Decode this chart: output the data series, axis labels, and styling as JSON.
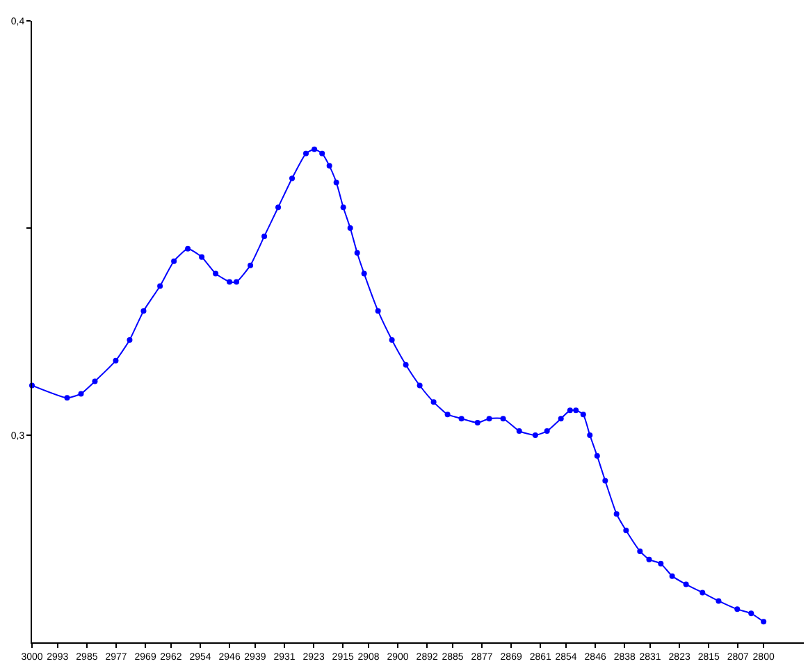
{
  "chart_data": {
    "type": "line",
    "x": [
      3000,
      2990.4,
      2986.6,
      2982.8,
      2977.1,
      2973.3,
      2969.5,
      2965.0,
      2961.2,
      2957.4,
      2953.6,
      2949.8,
      2946.0,
      2944.1,
      2940.3,
      2936.5,
      2932.7,
      2928.9,
      2925.1,
      2922.8,
      2920.7,
      2918.7,
      2916.8,
      2914.9,
      2913.0,
      2911.1,
      2909.2,
      2905.4,
      2901.6,
      2897.8,
      2894.0,
      2890.2,
      2886.4,
      2882.6,
      2878.2,
      2875.0,
      2871.2,
      2866.8,
      2862.4,
      2859.2,
      2855.4,
      2852.9,
      2851.3,
      2849.3,
      2847.5,
      2845.5,
      2843.3,
      2840.2,
      2837.6,
      2833.8,
      2831.3,
      2828.1,
      2825.0,
      2821.2,
      2816.7,
      2812.3,
      2807.2,
      2803.4,
      2800
    ],
    "series": [
      {
        "color": "#0000ff",
        "values": [
          0.312,
          0.309,
          0.31,
          0.313,
          0.318,
          0.323,
          0.33,
          0.336,
          0.342,
          0.345,
          0.343,
          0.339,
          0.337,
          0.337,
          0.341,
          0.348,
          0.355,
          0.362,
          0.368,
          0.369,
          0.368,
          0.365,
          0.361,
          0.355,
          0.35,
          0.344,
          0.339,
          0.33,
          0.323,
          0.317,
          0.312,
          0.308,
          0.305,
          0.304,
          0.303,
          0.304,
          0.304,
          0.301,
          0.3,
          0.301,
          0.304,
          0.306,
          0.306,
          0.305,
          0.3,
          0.295,
          0.289,
          0.281,
          0.277,
          0.272,
          0.27,
          0.269,
          0.266,
          0.264,
          0.262,
          0.26,
          0.258,
          0.257,
          0.255
        ]
      }
    ],
    "xlim": [
      3000,
      2789
    ],
    "xticks": [
      3000,
      2993,
      2985,
      2977,
      2969,
      2962,
      2954,
      2946,
      2939,
      2931,
      2923,
      2915,
      2908,
      2900,
      2892,
      2885,
      2877,
      2869,
      2861,
      2854,
      2846,
      2838,
      2831,
      2823,
      2815,
      2807,
      2800
    ],
    "ylim": [
      0.25,
      0.4
    ],
    "yticks": [
      {
        "value": 0.3,
        "label": "0,3"
      },
      {
        "value": 0.35,
        "label": null
      },
      {
        "value": 0.4,
        "label": "0,4"
      }
    ],
    "marker": "circle",
    "line_style": "solid"
  }
}
